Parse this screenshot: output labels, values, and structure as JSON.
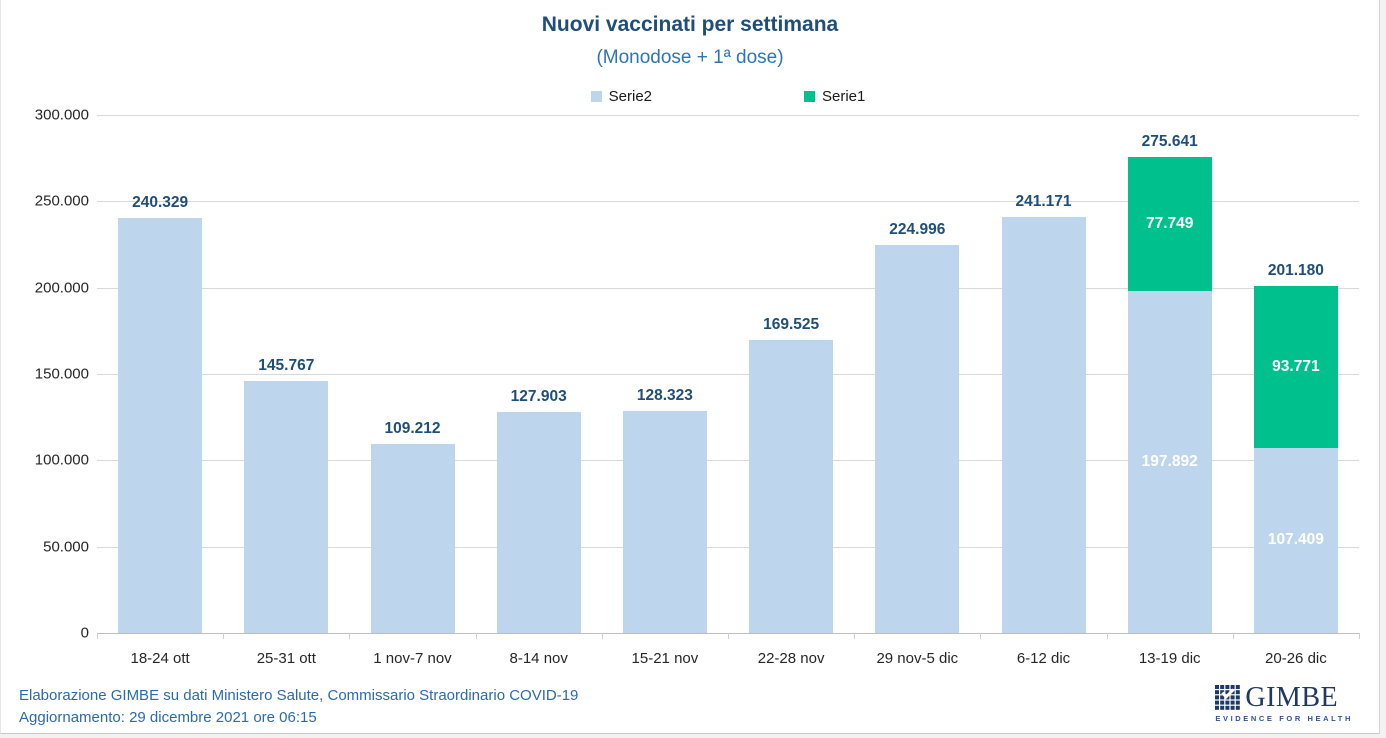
{
  "page": {
    "title": "Nuovi vaccinati per settimana",
    "subtitle": "(Monodose + 1ª dose)"
  },
  "legend": {
    "items": [
      {
        "label": "Serie2",
        "color": "#BDD6EE"
      },
      {
        "label": "Serie1",
        "color": "#00C18D"
      }
    ]
  },
  "chart_data": {
    "type": "bar",
    "stacked": true,
    "title": "Nuovi vaccinati per settimana",
    "subtitle": "(Monodose + 1ª dose)",
    "legend_position": "top",
    "grid": true,
    "categories": [
      "18-24 ott",
      "25-31 ott",
      "1 nov-7 nov",
      "8-14 nov",
      "15-21 nov",
      "22-28 nov",
      "29 nov-5 dic",
      "6-12 dic",
      "13-19 dic",
      "20-26 dic"
    ],
    "series": [
      {
        "name": "Serie2",
        "color": "#BDD6EE",
        "values": [
          240329,
          145767,
          109212,
          127903,
          128323,
          169525,
          224996,
          241171,
          197892,
          107409
        ],
        "labels": [
          "",
          "",
          "",
          "",
          "",
          "",
          "",
          "",
          "197.892",
          "107.409"
        ]
      },
      {
        "name": "Serie1",
        "color": "#00C18D",
        "values": [
          0,
          0,
          0,
          0,
          0,
          0,
          0,
          0,
          77749,
          93771
        ],
        "labels": [
          "",
          "",
          "",
          "",
          "",
          "",
          "",
          "",
          "77.749",
          "93.771"
        ]
      }
    ],
    "total_labels": [
      "240.329",
      "145.767",
      "109.212",
      "127.903",
      "128.323",
      "169.525",
      "224.996",
      "241.171",
      "275.641",
      "201.180"
    ],
    "xlabel": "",
    "ylabel": "",
    "ylim": [
      0,
      300000
    ],
    "yticks": [
      {
        "value": 300000,
        "label": "300.000"
      },
      {
        "value": 250000,
        "label": "250.000"
      },
      {
        "value": 200000,
        "label": "200.000"
      },
      {
        "value": 150000,
        "label": "150.000"
      },
      {
        "value": 100000,
        "label": "100.000"
      },
      {
        "value": 50000,
        "label": "50.000"
      },
      {
        "value": 0,
        "label": "0"
      }
    ]
  },
  "footer": {
    "line1": "Elaborazione GIMBE su dati Ministero Salute, Commissario Straordinario COVID-19",
    "line2": "Aggiornamento: 29 dicembre 2021 ore 06:15"
  },
  "logo": {
    "text": "GIMBE",
    "tagline": "EVIDENCE FOR HEALTH"
  },
  "colors": {
    "title": "#1F4E79",
    "subtitle": "#2E75B6",
    "value_label": "#1F4E79",
    "axis_text": "#262626",
    "gridline": "#D9D9D9",
    "footer_text": "#2A6BAE",
    "logo_navy": "#1F3864",
    "serie2": "#BDD6EE",
    "serie1": "#00C18D"
  }
}
